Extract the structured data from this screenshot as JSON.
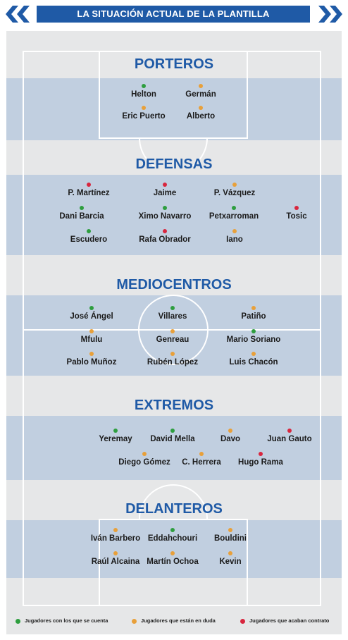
{
  "header": {
    "title": "LA SITUACIÓN ACTUAL DE LA PLANTILLA"
  },
  "colors": {
    "green": "#2e9e3f",
    "orange": "#e8a03a",
    "red": "#d8263e",
    "blue": "#1f5aa6"
  },
  "sections": {
    "porteros": {
      "title": "PORTEROS",
      "players": [
        {
          "name": "Helton",
          "status": "green"
        },
        {
          "name": "Germán",
          "status": "orange"
        },
        {
          "name": "Eric Puerto",
          "status": "orange"
        },
        {
          "name": "Alberto",
          "status": "orange"
        }
      ]
    },
    "defensas": {
      "title": "DEFENSAS",
      "players": [
        {
          "name": "P. Martínez",
          "status": "red"
        },
        {
          "name": "Jaime",
          "status": "red"
        },
        {
          "name": "P. Vázquez",
          "status": "orange"
        },
        {
          "name": "Dani Barcia",
          "status": "green"
        },
        {
          "name": "Ximo Navarro",
          "status": "green"
        },
        {
          "name": "Petxarroman",
          "status": "green"
        },
        {
          "name": "Tosic",
          "status": "red"
        },
        {
          "name": "Escudero",
          "status": "green"
        },
        {
          "name": "Rafa Obrador",
          "status": "red"
        },
        {
          "name": "Iano",
          "status": "orange"
        }
      ]
    },
    "mediocentros": {
      "title": "MEDIOCENTROS",
      "players": [
        {
          "name": "José Ángel",
          "status": "green"
        },
        {
          "name": "Villares",
          "status": "green"
        },
        {
          "name": "Patiño",
          "status": "orange"
        },
        {
          "name": "Mfulu",
          "status": "orange"
        },
        {
          "name": "Genreau",
          "status": "orange"
        },
        {
          "name": "Mario Soriano",
          "status": "green"
        },
        {
          "name": "Pablo Muñoz",
          "status": "orange"
        },
        {
          "name": "Rubén López",
          "status": "orange"
        },
        {
          "name": "Luis Chacón",
          "status": "orange"
        }
      ]
    },
    "extremos": {
      "title": "EXTREMOS",
      "players": [
        {
          "name": "Yeremay",
          "status": "green"
        },
        {
          "name": "David Mella",
          "status": "green"
        },
        {
          "name": "Davo",
          "status": "orange"
        },
        {
          "name": "Juan Gauto",
          "status": "red"
        },
        {
          "name": "Diego Gómez",
          "status": "orange"
        },
        {
          "name": "C. Herrera",
          "status": "orange"
        },
        {
          "name": "Hugo Rama",
          "status": "red"
        }
      ]
    },
    "delanteros": {
      "title": "DELANTEROS",
      "players": [
        {
          "name": "Iván Barbero",
          "status": "orange"
        },
        {
          "name": "Eddahchouri",
          "status": "green"
        },
        {
          "name": "Bouldini",
          "status": "orange"
        },
        {
          "name": "Raúl Alcaina",
          "status": "orange"
        },
        {
          "name": "Martín Ochoa",
          "status": "orange"
        },
        {
          "name": "Kevin",
          "status": "orange"
        }
      ]
    }
  },
  "legend": [
    {
      "label": "Jugadores con los que se cuenta",
      "status": "green"
    },
    {
      "label": "Jugadores que están en duda",
      "status": "orange"
    },
    {
      "label": "Jugadores que acaban contrato",
      "status": "red"
    }
  ]
}
